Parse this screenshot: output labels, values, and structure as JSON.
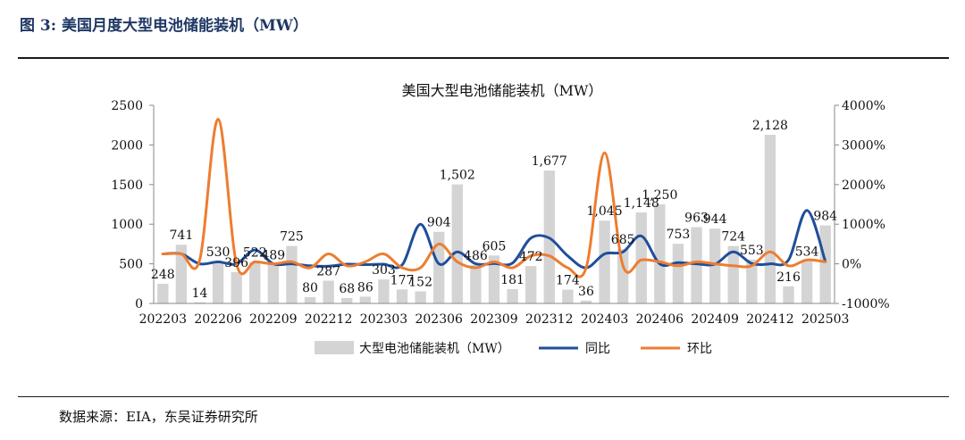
{
  "figure": {
    "title": "图 3:  美国月度大型电池储能装机（MW）",
    "source": "数据来源：EIA，东吴证券研究所"
  },
  "chart_data": {
    "type": "bar",
    "title": "美国大型电池储能装机（MW）",
    "xlabel": "",
    "ylabel": "",
    "ylim": [
      0,
      2500
    ],
    "y2lim": [
      -1000,
      4000
    ],
    "y_ticks": [
      "0",
      "500",
      "1000",
      "1500",
      "2000",
      "2500"
    ],
    "y2_ticks": [
      "-1000%",
      "0%",
      "1000%",
      "2000%",
      "3000%",
      "4000%"
    ],
    "x_tick_labels": [
      "202203",
      "202206",
      "202209",
      "202212",
      "202303",
      "202306",
      "202309",
      "202312",
      "202403",
      "202406",
      "202409",
      "202412",
      "202503"
    ],
    "categories": [
      "202203",
      "202204",
      "202205",
      "202206",
      "202207",
      "202208",
      "202209",
      "202210",
      "202211",
      "202212",
      "202301",
      "202302",
      "202303",
      "202304",
      "202305",
      "202306",
      "202307",
      "202308",
      "202309",
      "202310",
      "202311",
      "202312",
      "202401",
      "202402",
      "202403",
      "202404",
      "202405",
      "202406",
      "202407",
      "202408",
      "202409",
      "202410",
      "202411",
      "202412",
      "202501",
      "202502",
      "202503"
    ],
    "legend_position": "bottom",
    "grid": false,
    "series": [
      {
        "name": "大型电池储能装机（MW）",
        "kind": "bar",
        "axis": "left",
        "color": "#d4d4d4",
        "values": [
          248,
          741,
          14,
          530,
          396,
          522,
          489,
          725,
          80,
          287,
          68,
          86,
          303,
          177,
          152,
          904,
          1502,
          486,
          605,
          181,
          472,
          1677,
          174,
          36,
          1045,
          685,
          1148,
          1250,
          753,
          963,
          944,
          724,
          553,
          2128,
          216,
          534,
          984
        ],
        "labels": [
          "248",
          "741",
          "14",
          "530",
          "396",
          "522",
          "489",
          "725",
          "80",
          "287",
          "68",
          "86",
          "303",
          "177",
          "152",
          "904",
          "1,502",
          "486",
          "605",
          "181",
          "472",
          "1,677",
          "174",
          "36",
          "1,045",
          "685",
          "1,148",
          "1,250",
          "753",
          "963",
          "944",
          "724",
          "553",
          "2,128",
          "216",
          "534",
          "984"
        ]
      },
      {
        "name": "同比",
        "kind": "line",
        "axis": "right",
        "color": "#1f4e9a",
        "values": [
          250,
          250,
          0,
          50,
          0,
          350,
          0,
          0,
          -50,
          -60,
          -10,
          -20,
          -10,
          -30,
          1000,
          0,
          300,
          0,
          10,
          20,
          650,
          650,
          200,
          -100,
          250,
          300,
          700,
          0,
          30,
          0,
          -10,
          300,
          10,
          0,
          100,
          1350,
          60
        ]
      },
      {
        "name": "环比",
        "kind": "line",
        "axis": "right",
        "color": "#ed7d31",
        "values": [
          250,
          250,
          100,
          3650,
          0,
          50,
          0,
          50,
          -100,
          250,
          -50,
          50,
          250,
          -100,
          -100,
          500,
          50,
          -100,
          50,
          -100,
          200,
          200,
          -100,
          -100,
          2800,
          -50,
          100,
          50,
          -50,
          50,
          0,
          -50,
          -50,
          300,
          -50,
          100,
          50
        ]
      }
    ]
  }
}
